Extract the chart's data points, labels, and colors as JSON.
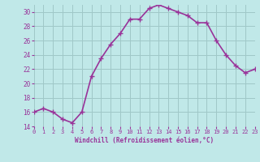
{
  "x": [
    0,
    1,
    2,
    3,
    4,
    5,
    6,
    7,
    8,
    9,
    10,
    11,
    12,
    13,
    14,
    15,
    16,
    17,
    18,
    19,
    20,
    21,
    22,
    23
  ],
  "y": [
    16.0,
    16.5,
    16.0,
    15.0,
    14.5,
    16.0,
    21.0,
    23.5,
    25.5,
    27.0,
    29.0,
    29.0,
    30.5,
    31.0,
    30.5,
    30.0,
    29.5,
    28.5,
    28.5,
    26.0,
    24.0,
    22.5,
    21.5,
    22.0
  ],
  "line_color": "#993399",
  "marker": "D",
  "marker_size": 2,
  "bg_color": "#c0e8e8",
  "grid_color": "#a0c8c8",
  "xlabel": "Windchill (Refroidissement éolien,°C)",
  "xlabel_color": "#993399",
  "tick_color": "#993399",
  "ylim": [
    14,
    31
  ],
  "yticks": [
    14,
    16,
    18,
    20,
    22,
    24,
    26,
    28,
    30
  ],
  "xlim": [
    0,
    23
  ],
  "xticks": [
    0,
    1,
    2,
    3,
    4,
    5,
    6,
    7,
    8,
    9,
    10,
    11,
    12,
    13,
    14,
    15,
    16,
    17,
    18,
    19,
    20,
    21,
    22,
    23
  ],
  "line_width": 1.2
}
